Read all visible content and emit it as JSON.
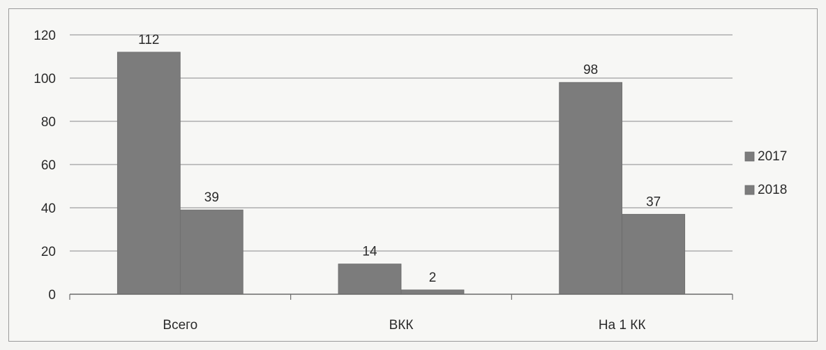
{
  "chart_data": {
    "type": "bar",
    "categories": [
      "Всего",
      "ВКК",
      "На 1 КК"
    ],
    "series": [
      {
        "name": "2017",
        "values": [
          112,
          14,
          98
        ]
      },
      {
        "name": "2018",
        "values": [
          39,
          2,
          37
        ]
      }
    ],
    "data_labels": [
      [
        "112",
        "14",
        "98"
      ],
      [
        "39",
        "2",
        "37"
      ]
    ],
    "ylim": [
      0,
      120
    ],
    "yticks": [
      0,
      20,
      40,
      60,
      80,
      100,
      120
    ],
    "grid": true,
    "legend": "right",
    "colors": {
      "series": [
        "#7c7c7c",
        "#7c7c7c"
      ],
      "grid": "#8a8a8a",
      "axis": "#6a6a6a",
      "text": "#2a2a2a"
    }
  }
}
